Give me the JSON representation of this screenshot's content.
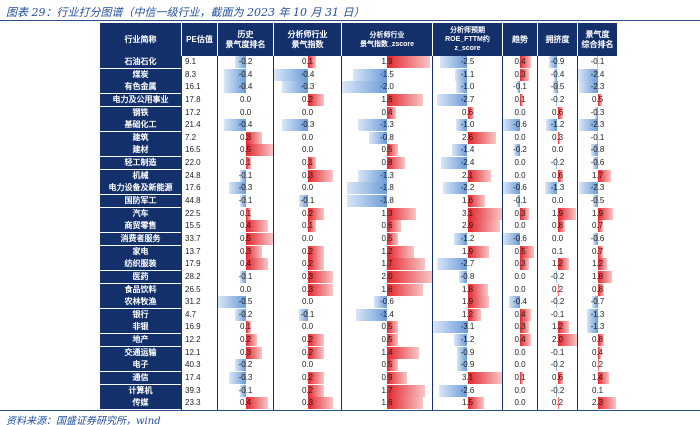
{
  "caption": "图表 29：行业打分图谱（中信一级行业，截面为 2023 年 10 月 31 日）",
  "source": "资料来源：国盛证券研究所，wind",
  "colors": {
    "header": "#13306a",
    "positive": "#e3262d",
    "negative": "#6b9bd8"
  },
  "headers": [
    "行业简称",
    "PE估值",
    "历史\n景气度排名",
    "分析师行业\n景气指数",
    "分析师行业\n景气指数_zscore",
    "分析师预期\nROE_FTTM约\nz_score",
    "趋势",
    "拥挤度",
    "景气度\n综合排名"
  ],
  "rows": [
    {
      "name": "石油石化",
      "pe": "9.1",
      "v": [
        "-0.2",
        "0.1",
        "1.9",
        "-2.5",
        "0.4",
        "-0.9",
        "-0.1"
      ]
    },
    {
      "name": "煤炭",
      "pe": "8.3",
      "v": [
        "-0.4",
        "-0.4",
        "-1.5",
        "-1.1",
        "0.3",
        "-0.4",
        "-2.4"
      ]
    },
    {
      "name": "有色金属",
      "pe": "16.1",
      "v": [
        "-0.4",
        "-0.3",
        "-2.0",
        "-1.0",
        "-0.1",
        "-0.5",
        "-2.3"
      ]
    },
    {
      "name": "电力及公用事业",
      "pe": "17.8",
      "v": [
        "0.0",
        "0.2",
        "1.6",
        "-2.7",
        "0.1",
        "-0.2",
        "0.5"
      ]
    },
    {
      "name": "钢铁",
      "pe": "17.2",
      "v": [
        "0.0",
        "0.0",
        "0.4",
        "0.6",
        "0.0",
        "0.6",
        "-0.3"
      ]
    },
    {
      "name": "基础化工",
      "pe": "21.4",
      "v": [
        "-0.4",
        "-0.3",
        "-1.3",
        "-1.0",
        "-0.6",
        "-1.2",
        "-2.3"
      ]
    },
    {
      "name": "建筑",
      "pe": "7.2",
      "v": [
        "0.3",
        "0.0",
        "-0.8",
        "2.6",
        "0.0",
        "0.3",
        "-0.1"
      ]
    },
    {
      "name": "建材",
      "pe": "16.5",
      "v": [
        "0.5",
        "0.0",
        "0.5",
        "-1.4",
        "-0.2",
        "0.0",
        "-0.8"
      ]
    },
    {
      "name": "轻工制造",
      "pe": "22.0",
      "v": [
        "0.1",
        "0.1",
        "0.8",
        "-2.4",
        "0.0",
        "-0.2",
        "-0.6"
      ]
    },
    {
      "name": "机械",
      "pe": "24.8",
      "v": [
        "-0.1",
        "0.3",
        "-1.3",
        "2.1",
        "0.0",
        "0.6",
        "1.7"
      ]
    },
    {
      "name": "电力设备及新能源",
      "pe": "17.6",
      "v": [
        "-0.3",
        "0.0",
        "-1.8",
        "-2.2",
        "-0.6",
        "-1.3",
        "-2.3"
      ]
    },
    {
      "name": "国防军工",
      "pe": "44.8",
      "v": [
        "-0.1",
        "-0.1",
        "-1.8",
        "1.6",
        "-0.1",
        "0.0",
        "-0.5"
      ]
    },
    {
      "name": "汽车",
      "pe": "22.5",
      "v": [
        "0.1",
        "0.2",
        "1.3",
        "3.1",
        "0.3",
        "1.9",
        "1.9"
      ]
    },
    {
      "name": "商贸零售",
      "pe": "15.5",
      "v": [
        "0.4",
        "0.1",
        "0.6",
        "2.9",
        "0.0",
        "0.8",
        "0.7"
      ]
    },
    {
      "name": "消费者服务",
      "pe": "33.7",
      "v": [
        "0.5",
        "0.0",
        "0.5",
        "-1.2",
        "-0.6",
        "0.0",
        "-0.6"
      ]
    },
    {
      "name": "家电",
      "pe": "13.7",
      "v": [
        "0.3",
        "0.2",
        "1.2",
        "1.9",
        "0.5",
        "0.1",
        "0.7"
      ]
    },
    {
      "name": "纺织服装",
      "pe": "17.9",
      "v": [
        "0.4",
        "0.2",
        "1.7",
        "-2.7",
        "0.3",
        "1.2",
        "1.2"
      ]
    },
    {
      "name": "医药",
      "pe": "28.2",
      "v": [
        "-0.1",
        "0.3",
        "2.0",
        "-0.8",
        "0.0",
        "-0.2",
        "1.8"
      ]
    },
    {
      "name": "食品饮料",
      "pe": "26.5",
      "v": [
        "0.0",
        "0.3",
        "1.6",
        "1.8",
        "0.0",
        "0.2",
        "0.8"
      ]
    },
    {
      "name": "农林牧渔",
      "pe": "31.2",
      "v": [
        "-0.5",
        "0.0",
        "-0.6",
        "1.9",
        "-0.4",
        "-0.2",
        "-0.7"
      ]
    },
    {
      "name": "银行",
      "pe": "4.7",
      "v": [
        "-0.2",
        "-0.1",
        "-1.4",
        "1.2",
        "0.4",
        "-0.1",
        "-1.3"
      ]
    },
    {
      "name": "非银",
      "pe": "16.9",
      "v": [
        "0.1",
        "0.0",
        "0.5",
        "-3.1",
        "0.3",
        "1.2",
        "-1.3"
      ]
    },
    {
      "name": "地产",
      "pe": "12.2",
      "v": [
        "0.2",
        "0.2",
        "0.5",
        "-1.2",
        "0.4",
        "2.0",
        "0.8"
      ]
    },
    {
      "name": "交通运输",
      "pe": "12.1",
      "v": [
        "0.3",
        "0.2",
        "1.4",
        "-0.9",
        "0.0",
        "-0.1",
        "0.4"
      ]
    },
    {
      "name": "电子",
      "pe": "40.3",
      "v": [
        "-0.2",
        "0.0",
        "0.5",
        "-0.9",
        "0.0",
        "-0.2",
        "0.2"
      ]
    },
    {
      "name": "通信",
      "pe": "17.4",
      "v": [
        "-0.3",
        "0.2",
        "0.9",
        "3.1",
        "0.1",
        "0.6",
        "1.4"
      ]
    },
    {
      "name": "计算机",
      "pe": "39.3",
      "v": [
        "-0.1",
        "0.2",
        "1.7",
        "-2.6",
        "0.0",
        "-0.2",
        "0.1"
      ]
    },
    {
      "name": "传媒",
      "pe": "23.3",
      "v": [
        "0.4",
        "0.3",
        "1.6",
        "1.5",
        "0.0",
        "0.2",
        "2.3"
      ]
    }
  ]
}
